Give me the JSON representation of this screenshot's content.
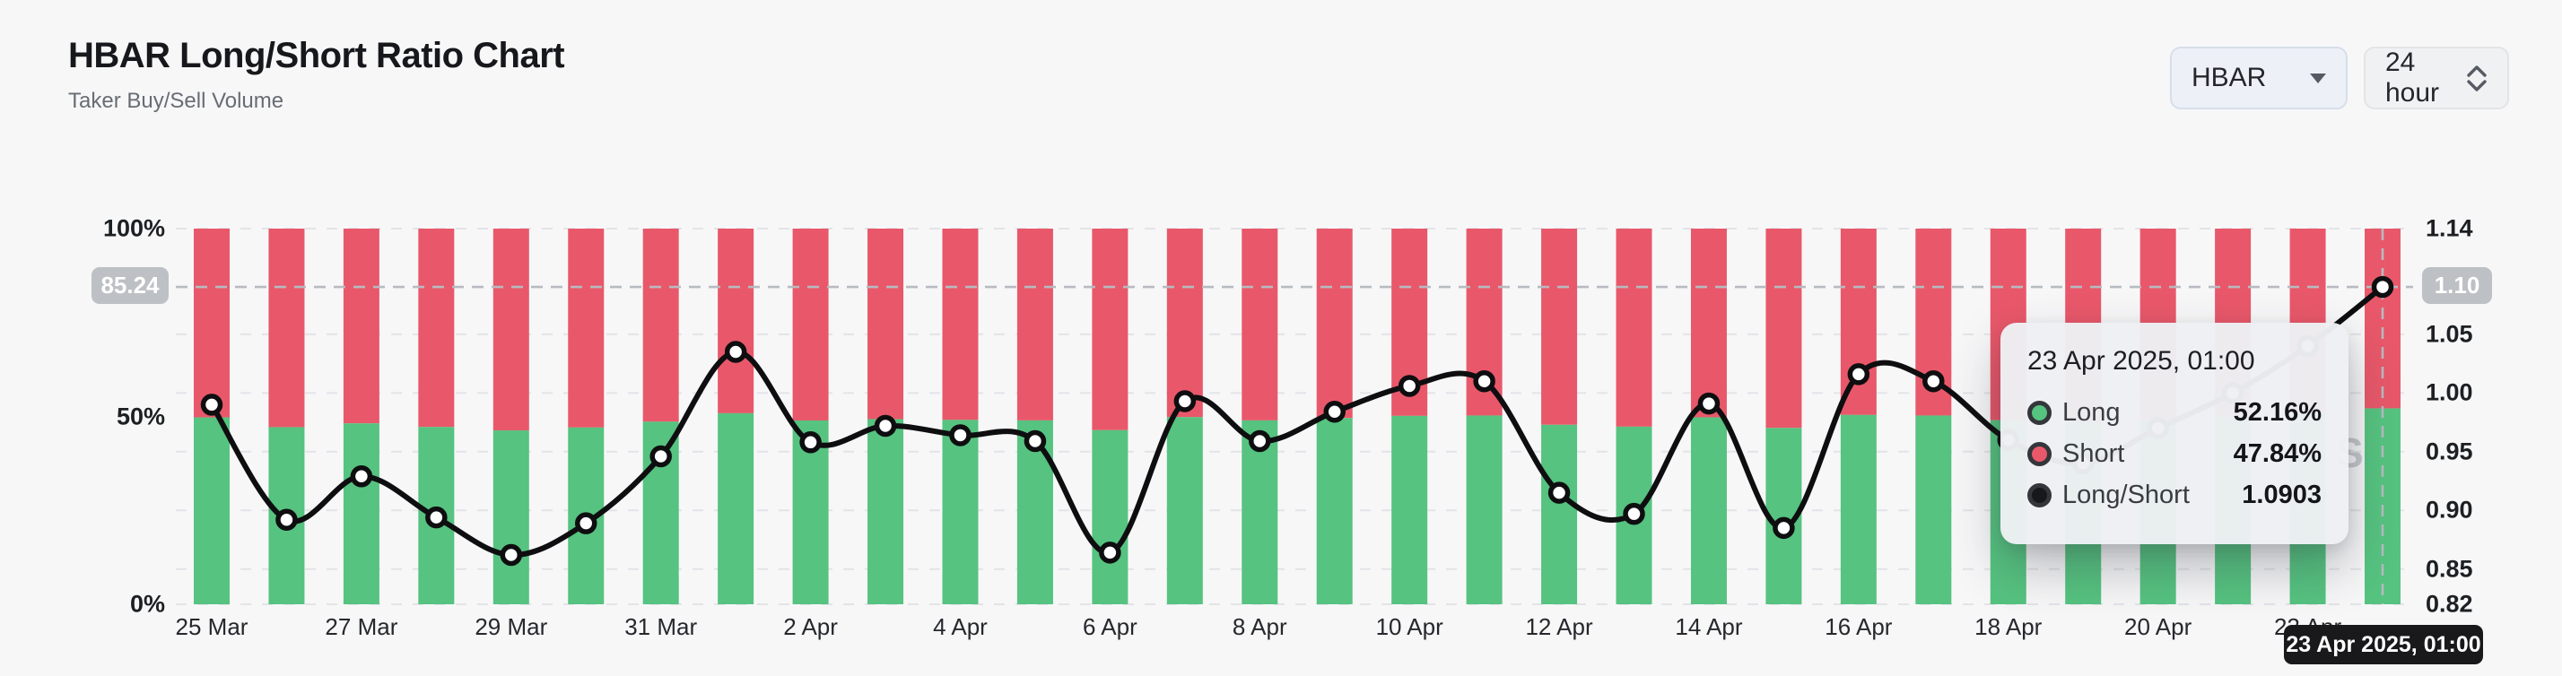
{
  "header": {
    "title": "HBAR Long/Short Ratio Chart",
    "subtitle": "Taker Buy/Sell Volume"
  },
  "controls": {
    "symbol_select": {
      "value": "HBAR"
    },
    "interval_select": {
      "value": "24 hour"
    }
  },
  "watermark": {
    "text": "S"
  },
  "tooltip": {
    "date": "23 Apr 2025, 01:00",
    "rows": [
      {
        "label": "Long",
        "value": "52.16%",
        "marker_color": "#56c380"
      },
      {
        "label": "Short",
        "value": "47.84%",
        "marker_color": "#e8586a"
      },
      {
        "label": "Long/Short",
        "value": "1.0903",
        "marker_color": "#16181b"
      }
    ]
  },
  "chart_data": {
    "type": "bar",
    "subtype": "stacked-percent-columns-with-ratio-line",
    "title": "HBAR Long/Short Ratio Chart",
    "categories": [
      "25 Mar",
      "26 Mar",
      "27 Mar",
      "28 Mar",
      "29 Mar",
      "30 Mar",
      "31 Mar",
      "1 Apr",
      "2 Apr",
      "3 Apr",
      "4 Apr",
      "5 Apr",
      "6 Apr",
      "7 Apr",
      "8 Apr",
      "9 Apr",
      "10 Apr",
      "11 Apr",
      "12 Apr",
      "13 Apr",
      "14 Apr",
      "15 Apr",
      "16 Apr",
      "17 Apr",
      "18 Apr",
      "19 Apr",
      "20 Apr",
      "21 Apr",
      "22 Apr",
      "23 Apr"
    ],
    "series": [
      {
        "name": "Long",
        "type": "bar-bottom",
        "color": "#56c380",
        "values": [
          49.75,
          47.15,
          48.16,
          47.2,
          46.29,
          47.06,
          48.61,
          50.86,
          48.93,
          49.29,
          49.08,
          48.95,
          46.35,
          49.82,
          48.95,
          49.6,
          50.15,
          50.25,
          47.78,
          47.28,
          49.77,
          46.95,
          50.4,
          50.25,
          48.98,
          48.45,
          49.24,
          50.0,
          50.98,
          52.16
        ]
      },
      {
        "name": "Short",
        "type": "bar-top",
        "color": "#e8586a",
        "values": [
          50.25,
          52.85,
          51.84,
          52.8,
          53.71,
          52.94,
          51.39,
          49.14,
          51.07,
          50.71,
          50.92,
          51.05,
          53.65,
          50.18,
          51.05,
          50.4,
          49.85,
          49.75,
          52.22,
          52.72,
          50.23,
          53.05,
          49.6,
          49.75,
          51.02,
          51.55,
          50.76,
          50.0,
          49.02,
          47.84
        ]
      },
      {
        "name": "Long/Short",
        "type": "line",
        "color": "#0e0e10",
        "values": [
          0.99,
          0.892,
          0.929,
          0.894,
          0.862,
          0.889,
          0.946,
          1.035,
          0.958,
          0.972,
          0.964,
          0.959,
          0.864,
          0.993,
          0.959,
          0.984,
          1.006,
          1.01,
          0.915,
          0.897,
          0.991,
          0.885,
          1.016,
          1.01,
          0.96,
          0.94,
          0.97,
          1.0,
          1.04,
          1.0903
        ]
      }
    ],
    "left_axis": {
      "min": 0,
      "max": 100,
      "ticks": [
        {
          "value": 0,
          "label": "0%"
        },
        {
          "value": 50,
          "label": "50%"
        },
        {
          "value": 100,
          "label": "100%"
        }
      ]
    },
    "right_axis": {
      "min": 0.82,
      "max": 1.14,
      "ticks": [
        {
          "value": 0.82,
          "label": "0.82"
        },
        {
          "value": 0.85,
          "label": "0.85"
        },
        {
          "value": 0.9,
          "label": "0.90"
        },
        {
          "value": 0.95,
          "label": "0.95"
        },
        {
          "value": 1.0,
          "label": "1.00"
        },
        {
          "value": 1.05,
          "label": "1.05"
        },
        {
          "value": 1.14,
          "label": "1.14"
        }
      ]
    },
    "x_tick_labels": [
      "25 Mar",
      "27 Mar",
      "29 Mar",
      "31 Mar",
      "2 Apr",
      "4 Apr",
      "6 Apr",
      "8 Apr",
      "10 Apr",
      "12 Apr",
      "14 Apr",
      "16 Apr",
      "18 Apr",
      "20 Apr",
      "22 Apr"
    ],
    "crosshair": {
      "category": "23 Apr",
      "ratio_value": 1.0903,
      "left_axis_label": "85.24",
      "right_axis_label": "1.10",
      "x_axis_label": "23 Apr 2025, 01:00"
    },
    "notes": {
      "days_hidden_behind_tooltip": [
        "18 Apr",
        "19 Apr",
        "20 Apr",
        "21 Apr",
        "22 Apr"
      ]
    },
    "layout": {
      "grid": "horizontal-dashed-at-right-axis-ticks",
      "legend": "none"
    },
    "colors": {
      "long_green": "#56c380",
      "short_red": "#e8586a",
      "ratio_line": "#0e0e10",
      "grid": "#e3e4e7",
      "crosshair": "#b7bac0",
      "crosshair_badge": "#bdc0c4",
      "x_date_badge_bg": "#19191b",
      "background": "#f7f7f8"
    }
  }
}
